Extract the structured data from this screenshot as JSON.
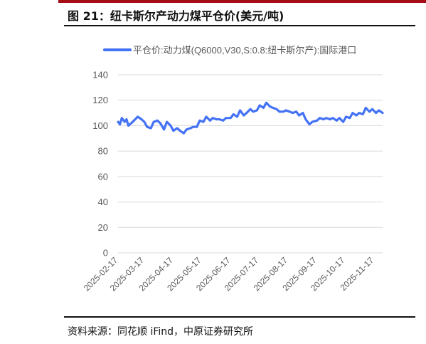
{
  "header": {
    "title": "图 21：纽卡斯尔产动力煤平仓价(美元/吨)"
  },
  "footer": {
    "source": "资料来源：同花顺 iFind，中原证券研究所"
  },
  "colors": {
    "accent": "#a30d13",
    "series": "#4472f5",
    "grid": "#d9d9d9"
  },
  "chart_data": {
    "type": "line",
    "series": [
      {
        "name": "平仓价:动力煤(Q6000,V30,S:0.8:纽卡斯尔产):国际港口",
        "color": "#4472f5",
        "x": [
          "2025-02-17",
          "2025-02-19",
          "2025-02-21",
          "2025-02-24",
          "2025-02-26",
          "2025-02-28",
          "2025-03-03",
          "2025-03-06",
          "2025-03-10",
          "2025-03-14",
          "2025-03-17",
          "2025-03-20",
          "2025-03-24",
          "2025-03-27",
          "2025-03-31",
          "2025-04-03",
          "2025-04-07",
          "2025-04-10",
          "2025-04-14",
          "2025-04-17",
          "2025-04-21",
          "2025-04-24",
          "2025-04-28",
          "2025-05-01",
          "2025-05-05",
          "2025-05-08",
          "2025-05-12",
          "2025-05-15",
          "2025-05-19",
          "2025-05-22",
          "2025-05-26",
          "2025-05-29",
          "2025-06-02",
          "2025-06-05",
          "2025-06-09",
          "2025-06-12",
          "2025-06-17",
          "2025-06-20",
          "2025-06-24",
          "2025-06-27",
          "2025-07-01",
          "2025-07-04",
          "2025-07-08",
          "2025-07-11",
          "2025-07-15",
          "2025-07-18",
          "2025-07-22",
          "2025-07-25",
          "2025-07-29",
          "2025-08-01",
          "2025-08-05",
          "2025-08-08",
          "2025-08-12",
          "2025-08-15",
          "2025-08-19",
          "2025-08-22",
          "2025-08-26",
          "2025-08-29",
          "2025-09-02",
          "2025-09-05",
          "2025-09-09",
          "2025-09-12",
          "2025-09-17",
          "2025-09-20",
          "2025-09-24",
          "2025-09-27",
          "2025-10-01",
          "2025-10-04",
          "2025-10-08",
          "2025-10-11",
          "2025-10-15",
          "2025-10-18",
          "2025-10-22",
          "2025-10-25",
          "2025-10-29",
          "2025-11-01",
          "2025-11-05",
          "2025-11-08",
          "2025-11-12",
          "2025-11-15",
          "2025-11-19",
          "2025-11-22",
          "2025-11-26"
        ],
        "values": [
          103,
          101,
          106,
          103,
          105,
          100,
          102,
          104,
          107,
          105,
          103,
          99,
          98,
          103,
          104,
          102,
          97,
          103,
          100,
          96,
          98,
          96,
          94,
          97,
          98,
          99,
          99,
          104,
          103,
          107,
          104,
          106,
          105,
          105,
          104,
          106,
          106,
          109,
          107,
          112,
          108,
          110,
          113,
          111,
          112,
          116,
          114,
          118,
          115,
          114,
          113,
          111,
          111,
          112,
          111,
          110,
          111,
          108,
          110,
          105,
          101,
          103,
          104,
          106,
          105,
          106,
          105,
          106,
          104,
          106,
          103,
          107,
          106,
          110,
          108,
          110,
          109,
          114,
          111,
          113,
          110,
          112,
          110
        ]
      }
    ],
    "x_ticks": [
      "2025-02-17",
      "2025-03-17",
      "2025-04-17",
      "2025-05-17",
      "2025-06-17",
      "2025-07-17",
      "2025-08-17",
      "2025-09-17",
      "2025-10-17",
      "2025-11-17"
    ],
    "x_range": [
      "2025-02-17",
      "2025-11-26"
    ],
    "ylim": [
      0,
      140
    ],
    "y_ticks": [
      0,
      20,
      40,
      60,
      80,
      100,
      120,
      140
    ],
    "grid": true,
    "legend": "top"
  }
}
